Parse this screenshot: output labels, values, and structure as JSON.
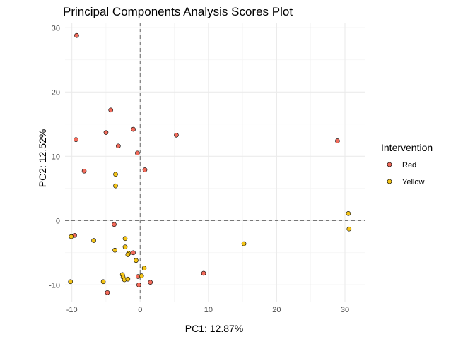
{
  "chart_data": {
    "type": "scatter",
    "title": "Principal Components Analysis Scores Plot",
    "xlabel": "PC1: 12.87%",
    "ylabel": "PC2: 12.52%",
    "xlim": [
      -11,
      33
    ],
    "ylim": [
      -12.6,
      30.8
    ],
    "x_ticks": [
      -10,
      0,
      10,
      20,
      30
    ],
    "y_ticks": [
      -10,
      0,
      10,
      20,
      30
    ],
    "grid": true,
    "reference_lines": {
      "x": 0,
      "y": 0,
      "style": "dashed"
    },
    "legend": {
      "title": "Intervention",
      "position": "right",
      "entries": [
        "Red",
        "Yellow"
      ]
    },
    "series": [
      {
        "name": "Red",
        "color": "#f26b5b",
        "points": [
          [
            -9.3,
            28.8
          ],
          [
            -4.3,
            17.2
          ],
          [
            -1.0,
            14.2
          ],
          [
            -5.0,
            13.7
          ],
          [
            5.3,
            13.3
          ],
          [
            -9.4,
            12.6
          ],
          [
            28.9,
            12.4
          ],
          [
            -3.2,
            11.6
          ],
          [
            -0.4,
            10.5
          ],
          [
            -8.2,
            7.7
          ],
          [
            0.7,
            7.9
          ],
          [
            -3.8,
            -0.6
          ],
          [
            -9.6,
            -2.3
          ],
          [
            -1.0,
            -5.0
          ],
          [
            9.3,
            -8.2
          ],
          [
            -0.3,
            -8.7
          ],
          [
            1.5,
            -9.6
          ],
          [
            -0.2,
            -10.0
          ],
          [
            -4.8,
            -11.2
          ]
        ]
      },
      {
        "name": "Yellow",
        "color": "#f5c518",
        "points": [
          [
            -3.6,
            7.2
          ],
          [
            -3.6,
            5.4
          ],
          [
            30.5,
            1.1
          ],
          [
            30.6,
            -1.3
          ],
          [
            -10.1,
            -2.5
          ],
          [
            -6.8,
            -3.1
          ],
          [
            -2.2,
            -2.8
          ],
          [
            15.2,
            -3.6
          ],
          [
            -2.2,
            -4.1
          ],
          [
            -3.7,
            -4.6
          ],
          [
            -1.7,
            -5.1
          ],
          [
            -1.8,
            -5.3
          ],
          [
            -0.6,
            -6.2
          ],
          [
            0.6,
            -7.4
          ],
          [
            -2.6,
            -8.4
          ],
          [
            -2.5,
            -8.8
          ],
          [
            0.2,
            -8.6
          ],
          [
            -2.3,
            -9.2
          ],
          [
            -1.8,
            -9.1
          ],
          [
            -10.2,
            -9.5
          ],
          [
            -5.4,
            -9.5
          ]
        ]
      }
    ]
  }
}
